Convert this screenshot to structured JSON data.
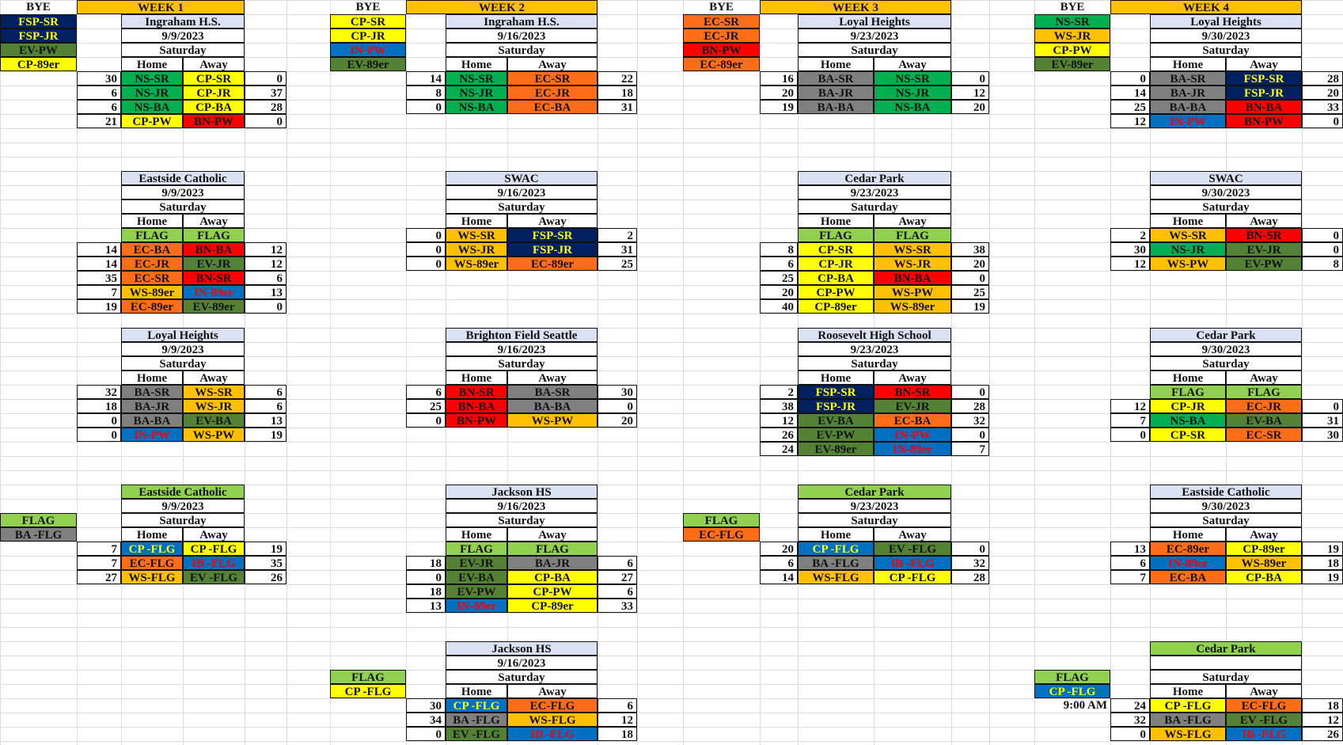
{
  "colors": {
    "NS": "#00b050",
    "CP": "#ffff00",
    "BN": "#ff0000",
    "EC": "#ff6d18",
    "IN": "#0070c0",
    "IB": "#0070c0",
    "FSP": "#002060",
    "EV": "#548235",
    "WS": "#ffc000",
    "BA": "#808080",
    "header": "#ffc000",
    "venue": "#d9e1f2",
    "venue_green": "#92d050",
    "flag": "#92d050",
    "white": "#ffffff"
  },
  "weeks": [
    {
      "title": "WEEK 1",
      "bye_label": "BYE",
      "bye": [
        {
          "text": "FSP-SR",
          "team": "FSP"
        },
        {
          "text": "FSP-JR",
          "team": "FSP"
        },
        {
          "text": "EV-PW",
          "team": "EV"
        },
        {
          "text": "CP-89er",
          "team": "CP"
        }
      ],
      "blocks": [
        {
          "venue": "Ingraham H.S.",
          "date": "9/9/2023",
          "day": "Saturday",
          "home_label": "Home",
          "away_label": "Away",
          "flag_row": false,
          "games": [
            {
              "hs": "30",
              "h": "NS-SR",
              "ht": "NS",
              "a": "CP-SR",
              "at": "CP",
              "as": "0"
            },
            {
              "hs": "6",
              "h": "NS-JR",
              "ht": "NS",
              "a": "CP-JR",
              "at": "CP",
              "as": "37"
            },
            {
              "hs": "6",
              "h": "NS-BA",
              "ht": "NS",
              "a": "CP-BA",
              "at": "CP",
              "as": "28"
            },
            {
              "hs": "21",
              "h": "CP-PW",
              "ht": "CP",
              "a": "BN-PW",
              "at": "BN",
              "as": "0"
            }
          ]
        },
        {
          "venue": "Eastside Catholic",
          "date": "9/9/2023",
          "day": "Saturday",
          "home_label": "Home",
          "away_label": "Away",
          "flag_row": true,
          "flag_label": "FLAG",
          "games": [
            {
              "hs": "14",
              "h": "EC-BA",
              "ht": "EC",
              "a": "BN-BA",
              "at": "BN",
              "as": "12"
            },
            {
              "hs": "14",
              "h": "EC-JR",
              "ht": "EC",
              "a": "EV-JR",
              "at": "EV",
              "as": "12"
            },
            {
              "hs": "35",
              "h": "EC-SR",
              "ht": "EC",
              "a": "BN-SR",
              "at": "BN",
              "as": "6"
            },
            {
              "hs": "7",
              "h": "WS-89er",
              "ht": "WS",
              "a": "IN-89er",
              "at": "IN",
              "as": "13"
            },
            {
              "hs": "19",
              "h": "EC-89er",
              "ht": "EC",
              "a": "EV-89er",
              "at": "EV",
              "as": "0"
            }
          ]
        },
        {
          "venue": "Loyal Heights",
          "date": "9/9/2023",
          "day": "Saturday",
          "home_label": "Home",
          "away_label": "Away",
          "flag_row": false,
          "games": [
            {
              "hs": "32",
              "h": "BA-SR",
              "ht": "BA",
              "a": "WS-SR",
              "at": "WS",
              "as": "6"
            },
            {
              "hs": "18",
              "h": "BA-JR",
              "ht": "BA",
              "a": "WS-JR",
              "at": "WS",
              "as": "6"
            },
            {
              "hs": "0",
              "h": "BA-BA",
              "ht": "BA",
              "a": "EV-BA",
              "at": "EV",
              "as": "13"
            },
            {
              "hs": "0",
              "h": "IN-PW",
              "ht": "IN",
              "a": "WS-PW",
              "at": "WS",
              "as": "19"
            }
          ]
        },
        {
          "venue": "Eastside Catholic",
          "venue_green": true,
          "date": "9/9/2023",
          "day": "Saturday",
          "home_label": "Home",
          "away_label": "Away",
          "flag_row": false,
          "side": {
            "flag": "FLAG",
            "team_text": "BA -FLG",
            "team": "BA"
          },
          "games": [
            {
              "hs": "7",
              "h": "CP -FLG",
              "ht": "IN",
              "htc": "#ffff00",
              "a": "CP -FLG",
              "at": "CP",
              "as": "19"
            },
            {
              "hs": "7",
              "h": "EC-FLG",
              "ht": "EC",
              "a": "IB -FLG",
              "at": "IB",
              "as": "35"
            },
            {
              "hs": "27",
              "h": "WS-FLG",
              "ht": "WS",
              "a": "EV -FLG",
              "at": "EV",
              "as": "26"
            }
          ]
        }
      ]
    },
    {
      "title": "WEEK 2",
      "bye_label": "BYE",
      "bye": [
        {
          "text": "CP-SR",
          "team": "CP"
        },
        {
          "text": "CP-JR",
          "team": "CP"
        },
        {
          "text": "IN-PW",
          "team": "IN"
        },
        {
          "text": "EV-89er",
          "team": "EV"
        }
      ],
      "blocks": [
        {
          "venue": "Ingraham H.S.",
          "date": "9/16/2023",
          "day": "Saturday",
          "home_label": "Home",
          "away_label": "Away",
          "flag_row": false,
          "games": [
            {
              "hs": "14",
              "h": "NS-SR",
              "ht": "NS",
              "a": "EC-SR",
              "at": "EC",
              "as": "22"
            },
            {
              "hs": "8",
              "h": "NS-JR",
              "ht": "NS",
              "a": "EC-JR",
              "at": "EC",
              "as": "18"
            },
            {
              "hs": "0",
              "h": "NS-BA",
              "ht": "NS",
              "a": "EC-BA",
              "at": "EC",
              "as": "31"
            }
          ]
        },
        {
          "venue": "SWAC",
          "date": "9/16/2023",
          "day": "Saturday",
          "home_label": "Home",
          "away_label": "Away",
          "flag_row": false,
          "games": [
            {
              "hs": "0",
              "h": "WS-SR",
              "ht": "WS",
              "a": "FSP-SR",
              "at": "FSP",
              "as": "2"
            },
            {
              "hs": "0",
              "h": "WS-JR",
              "ht": "WS",
              "a": "FSP-JR",
              "at": "FSP",
              "as": "31"
            },
            {
              "hs": "0",
              "h": "WS-89er",
              "ht": "WS",
              "a": "EC-89er",
              "at": "EC",
              "as": "25"
            }
          ]
        },
        {
          "venue": "Brighton Field Seattle",
          "date": "9/16/2023",
          "day": "Saturday",
          "home_label": "Home",
          "away_label": "Away",
          "flag_row": false,
          "games": [
            {
              "hs": "6",
              "h": "BN-SR",
              "ht": "BN",
              "a": "BA-SR",
              "at": "BA",
              "as": "30"
            },
            {
              "hs": "25",
              "h": "BN-BA",
              "ht": "BN",
              "a": "BA-BA",
              "at": "BA",
              "as": "0"
            },
            {
              "hs": "0",
              "h": "BN-PW",
              "ht": "BN",
              "a": "WS-PW",
              "at": "WS",
              "as": "20"
            }
          ]
        },
        {
          "venue": "Jackson HS",
          "date": "9/16/2023",
          "day": "Saturday",
          "home_label": "Home",
          "away_label": "Away",
          "flag_row": true,
          "flag_label": "FLAG",
          "games": [
            {
              "hs": "18",
              "h": "EV-JR",
              "ht": "EV",
              "a": "BA-JR",
              "at": "BA",
              "as": "6"
            },
            {
              "hs": "0",
              "h": "EV-BA",
              "ht": "EV",
              "a": "CP-BA",
              "at": "CP",
              "as": "27"
            },
            {
              "hs": "18",
              "h": "EV-PW",
              "ht": "EV",
              "a": "CP-PW",
              "at": "CP",
              "as": "6"
            },
            {
              "hs": "13",
              "h": "IN-89er",
              "ht": "IN",
              "a": "CP-89er",
              "at": "CP",
              "as": "33"
            }
          ]
        },
        {
          "venue": "Jackson HS",
          "date": "9/16/2023",
          "day": "Saturday",
          "home_label": "Home",
          "away_label": "Away",
          "flag_row": false,
          "side": {
            "flag": "FLAG",
            "team_text": "CP -FLG",
            "team": "CP"
          },
          "games": [
            {
              "hs": "30",
              "h": "CP -FLG",
              "ht": "IN",
              "htc": "#ffff00",
              "a": "EC-FLG",
              "at": "EC",
              "as": "6"
            },
            {
              "hs": "34",
              "h": "BA -FLG",
              "ht": "BA",
              "a": "WS-FLG",
              "at": "WS",
              "as": "12"
            },
            {
              "hs": "0",
              "h": "EV -FLG",
              "ht": "EV",
              "a": "IB -FLG",
              "at": "IB",
              "as": "18"
            }
          ]
        }
      ]
    },
    {
      "title": "WEEK 3",
      "bye_label": "BYE",
      "bye": [
        {
          "text": "EC-SR",
          "team": "EC"
        },
        {
          "text": "EC-JR",
          "team": "EC"
        },
        {
          "text": "BN-PW",
          "team": "BN"
        },
        {
          "text": "EC-89er",
          "team": "EC"
        }
      ],
      "blocks": [
        {
          "venue": "Loyal Heights",
          "date": "9/23/2023",
          "day": "Saturday",
          "home_label": "Home",
          "away_label": "Away",
          "flag_row": false,
          "games": [
            {
              "hs": "16",
              "h": "BA-SR",
              "ht": "BA",
              "a": "NS-SR",
              "at": "NS",
              "as": "0"
            },
            {
              "hs": "20",
              "h": "BA-JR",
              "ht": "BA",
              "a": "NS-JR",
              "at": "NS",
              "as": "12"
            },
            {
              "hs": "19",
              "h": "BA-BA",
              "ht": "BA",
              "a": "NS-BA",
              "at": "NS",
              "as": "20"
            }
          ]
        },
        {
          "venue": "Cedar Park",
          "date": "9/23/2023",
          "day": "Saturday",
          "home_label": "Home",
          "away_label": "Away",
          "flag_row": true,
          "flag_label": "FLAG",
          "games": [
            {
              "hs": "8",
              "h": "CP-SR",
              "ht": "CP",
              "a": "WS-SR",
              "at": "WS",
              "as": "38"
            },
            {
              "hs": "6",
              "h": "CP-JR",
              "ht": "CP",
              "a": "WS-JR",
              "at": "WS",
              "as": "20"
            },
            {
              "hs": "25",
              "h": "CP-BA",
              "ht": "CP",
              "a": "BN-BA",
              "at": "BN",
              "as": "0"
            },
            {
              "hs": "20",
              "h": "CP-PW",
              "ht": "CP",
              "a": "WS-PW",
              "at": "WS",
              "as": "25"
            },
            {
              "hs": "40",
              "h": "CP-89er",
              "ht": "CP",
              "a": "WS-89er",
              "at": "WS",
              "as": "19"
            }
          ]
        },
        {
          "venue": "Roosevelt High School",
          "date": "9/23/2023",
          "day": "Saturday",
          "home_label": "Home",
          "away_label": "Away",
          "flag_row": false,
          "games": [
            {
              "hs": "2",
              "h": "FSP-SR",
              "ht": "FSP",
              "a": "BN-SR",
              "at": "BN",
              "as": "0"
            },
            {
              "hs": "38",
              "h": "FSP-JR",
              "ht": "FSP",
              "a": "EV-JR",
              "at": "EV",
              "as": "28"
            },
            {
              "hs": "12",
              "h": "EV-BA",
              "ht": "EV",
              "a": "EC-BA",
              "at": "EC",
              "as": "32"
            },
            {
              "hs": "26",
              "h": "EV-PW",
              "ht": "EV",
              "a": "IN-PW",
              "at": "IN",
              "as": "0"
            },
            {
              "hs": "24",
              "h": "EV-89er",
              "ht": "EV",
              "a": "IN-89er",
              "at": "IN",
              "as": "7"
            }
          ]
        },
        {
          "venue": "Cedar Park",
          "venue_green": true,
          "date": "9/23/2023",
          "day": "Saturday",
          "home_label": "Home",
          "away_label": "Away",
          "flag_row": false,
          "side": {
            "flag": "FLAG",
            "team_text": "EC-FLG",
            "team": "EC"
          },
          "games": [
            {
              "hs": "20",
              "h": "CP -FLG",
              "ht": "IN",
              "htc": "#ffff00",
              "a": "EV -FLG",
              "at": "EV",
              "as": "0"
            },
            {
              "hs": "6",
              "h": "BA -FLG",
              "ht": "BA",
              "a": "IB -FLG",
              "at": "IB",
              "as": "32"
            },
            {
              "hs": "14",
              "h": "WS-FLG",
              "ht": "WS",
              "a": "CP -FLG",
              "at": "CP",
              "as": "28"
            }
          ]
        }
      ]
    },
    {
      "title": "WEEK 4",
      "bye_label": "BYE",
      "bye": [
        {
          "text": "NS-SR",
          "team": "NS"
        },
        {
          "text": "WS-JR",
          "team": "WS"
        },
        {
          "text": "CP-PW",
          "team": "CP"
        },
        {
          "text": "EV-89er",
          "team": "EV"
        }
      ],
      "blocks": [
        {
          "venue": "Loyal Heights",
          "date": "9/30/2023",
          "day": "Saturday",
          "home_label": "Home",
          "away_label": "Away",
          "flag_row": false,
          "games": [
            {
              "hs": "0",
              "h": "BA-SR",
              "ht": "BA",
              "a": "FSP-SR",
              "at": "FSP",
              "as": "28"
            },
            {
              "hs": "14",
              "h": "BA-JR",
              "ht": "BA",
              "a": "FSP-JR",
              "at": "FSP",
              "as": "20"
            },
            {
              "hs": "25",
              "h": "BA-BA",
              "ht": "BA",
              "a": "BN-BA",
              "at": "BN",
              "as": "33"
            },
            {
              "hs": "12",
              "h": "IN-PW",
              "ht": "IN",
              "a": "BN-PW",
              "at": "BN",
              "as": "0"
            }
          ]
        },
        {
          "venue": "SWAC",
          "date": "9/30/2023",
          "day": "Saturday",
          "home_label": "Home",
          "away_label": "Away",
          "flag_row": false,
          "games": [
            {
              "hs": "2",
              "h": "WS-SR",
              "ht": "WS",
              "a": "BN-SR",
              "at": "BN",
              "as": "0"
            },
            {
              "hs": "30",
              "h": "NS-JR",
              "ht": "NS",
              "a": "EV-JR",
              "at": "EV",
              "as": "0"
            },
            {
              "hs": "12",
              "h": "WS-PW",
              "ht": "WS",
              "a": "EV-PW",
              "at": "EV",
              "as": "8"
            }
          ]
        },
        {
          "venue": "Cedar Park",
          "date": "9/30/2023",
          "day": "Saturday",
          "home_label": "Home",
          "away_label": "Away",
          "flag_row": true,
          "flag_label": "FLAG",
          "games": [
            {
              "hs": "12",
              "h": "CP-JR",
              "ht": "CP",
              "a": "EC-JR",
              "at": "EC",
              "as": "0"
            },
            {
              "hs": "7",
              "h": "NS-BA",
              "ht": "NS",
              "a": "EV-BA",
              "at": "EV",
              "as": "31"
            },
            {
              "hs": "0",
              "h": "CP-SR",
              "ht": "CP",
              "a": "EC-SR",
              "at": "EC",
              "as": "30"
            }
          ]
        },
        {
          "venue": "Eastside Catholic",
          "date": "9/30/2023",
          "day": "Saturday",
          "home_label": "Home",
          "away_label": "Away",
          "flag_row": false,
          "games": [
            {
              "hs": "13",
              "h": "EC-89er",
              "ht": "EC",
              "a": "CP-89er",
              "at": "CP",
              "as": "19"
            },
            {
              "hs": "6",
              "h": "IN-89er",
              "ht": "IN",
              "a": "WS-89er",
              "at": "WS",
              "as": "18"
            },
            {
              "hs": "7",
              "h": "EC-BA",
              "ht": "EC",
              "a": "CP-BA",
              "at": "CP",
              "as": "19"
            }
          ]
        },
        {
          "venue": "Cedar Park",
          "venue_green": true,
          "date": "",
          "day": "Saturday",
          "home_label": "Home",
          "away_label": "Away",
          "flag_row": false,
          "side": {
            "flag": "FLAG",
            "team_text": "CP -FLG",
            "team": "IN",
            "team_text_color": "#ffff00",
            "time": "9:00 AM"
          },
          "games": [
            {
              "hs": "24",
              "h": "CP -FLG",
              "ht": "CP",
              "a": "EC-FLG",
              "at": "EC",
              "as": "18"
            },
            {
              "hs": "32",
              "h": "BA -FLG",
              "ht": "BA",
              "a": "EV -FLG",
              "at": "EV",
              "as": "12"
            },
            {
              "hs": "0",
              "h": "WS-FLG",
              "ht": "WS",
              "a": "IB -FLG",
              "at": "IB",
              "as": "26"
            }
          ]
        }
      ]
    }
  ]
}
